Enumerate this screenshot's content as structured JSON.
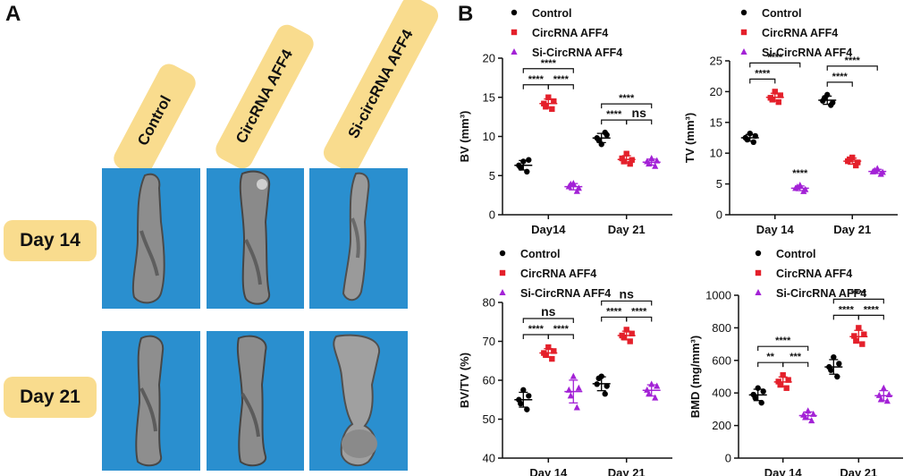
{
  "panel_a": {
    "letter": "A",
    "columns": [
      "Control",
      "CircRNA AFF4",
      "Si-circRNA AFF4"
    ],
    "rows": [
      "Day 14",
      "Day 21"
    ]
  },
  "panel_b": {
    "letter": "B"
  },
  "colors": {
    "control": "#000000",
    "circ": "#e4202b",
    "si": "#a322d6",
    "tile_bg": "#2a8fcf",
    "label_bg": "#f9dc8e"
  },
  "legend": [
    "Control",
    "CircRNA AFF4",
    "Si-CircRNA AFF4"
  ],
  "chart_data": [
    {
      "type": "scatter",
      "ylabel": "BV (mm³)",
      "ylim": [
        0,
        20
      ],
      "yticks": [
        0,
        5,
        10,
        15,
        20
      ],
      "categories": [
        "Day14",
        "Day 21"
      ],
      "series": [
        {
          "name": "Control",
          "points": [
            [
              6.3,
              5.5,
              6.8,
              7.0,
              6.0
            ],
            [
              9.8,
              10.5,
              9.0,
              10.2,
              9.5
            ]
          ]
        },
        {
          "name": "CircRNA AFF4",
          "points": [
            [
              14.2,
              13.5,
              15.0,
              14.5,
              13.8
            ],
            [
              7.2,
              6.5,
              7.8,
              7.0,
              6.8
            ]
          ]
        },
        {
          "name": "Si-CircRNA AFF4",
          "points": [
            [
              3.6,
              3.0,
              4.0,
              3.4,
              3.9
            ],
            [
              6.8,
              6.2,
              7.2,
              6.9,
              6.5
            ]
          ]
        }
      ],
      "brackets": [
        {
          "group": 0,
          "from": 0,
          "to": 1,
          "label": "****",
          "level": 0
        },
        {
          "group": 0,
          "from": 1,
          "to": 2,
          "label": "****",
          "level": 0
        },
        {
          "group": 0,
          "from": 0,
          "to": 2,
          "label": "****",
          "level": 1
        },
        {
          "group": 1,
          "from": 0,
          "to": 1,
          "label": "****",
          "level": 0
        },
        {
          "group": 1,
          "from": 1,
          "to": 2,
          "label": "ns",
          "level": 0
        },
        {
          "group": 1,
          "from": 0,
          "to": 2,
          "label": "****",
          "level": 1
        }
      ],
      "single_marks": []
    },
    {
      "type": "scatter",
      "ylabel": "TV (mm³)",
      "ylim": [
        0,
        25
      ],
      "yticks": [
        0,
        5,
        10,
        15,
        20,
        25
      ],
      "categories": [
        "Day 14",
        "Day 21"
      ],
      "series": [
        {
          "name": "Control",
          "points": [
            [
              12.5,
              11.8,
              13.2,
              12.8,
              12.2
            ],
            [
              18.5,
              17.8,
              19.5,
              18.2,
              19.0
            ]
          ]
        },
        {
          "name": "CircRNA AFF4",
          "points": [
            [
              19.0,
              18.3,
              20.0,
              19.4,
              18.7
            ],
            [
              8.7,
              8.0,
              9.3,
              8.5,
              9.0
            ]
          ]
        },
        {
          "name": "Si-CircRNA AFF4",
          "points": [
            [
              4.3,
              3.8,
              4.8,
              4.1,
              4.5
            ],
            [
              7.0,
              6.6,
              7.5,
              6.9,
              7.2
            ]
          ]
        }
      ],
      "brackets": [
        {
          "group": 0,
          "from": 0,
          "to": 1,
          "label": "****",
          "level": 0
        },
        {
          "group": 0,
          "from": 0,
          "to": 2,
          "label": "****",
          "level": 1
        },
        {
          "group": 1,
          "from": 0,
          "to": 1,
          "label": "****",
          "level": 0
        },
        {
          "group": 1,
          "from": 0,
          "to": 2,
          "label": "****",
          "level": 1
        }
      ],
      "single_marks": [
        {
          "group": 0,
          "series": 2,
          "label": "****"
        }
      ]
    },
    {
      "type": "scatter",
      "ylabel": "BV/TV (%)",
      "ylim": [
        40,
        80
      ],
      "yticks": [
        40,
        50,
        60,
        70,
        80
      ],
      "categories": [
        "Day 14",
        "Day 21"
      ],
      "series": [
        {
          "name": "Control",
          "points": [
            [
              55.0,
              52.5,
              57.5,
              56.0,
              54.0
            ],
            [
              59.0,
              56.5,
              61.0,
              58.5,
              60.5
            ]
          ]
        },
        {
          "name": "CircRNA AFF4",
          "points": [
            [
              67.0,
              65.5,
              68.5,
              67.5,
              66.5
            ],
            [
              71.5,
              70.0,
              73.0,
              72.0,
              71.0
            ]
          ]
        },
        {
          "name": "Si-CircRNA AFF4",
          "points": [
            [
              57.5,
              53.0,
              61.0,
              58.0,
              56.0
            ],
            [
              57.5,
              55.5,
              59.0,
              58.5,
              56.5
            ]
          ]
        }
      ],
      "brackets": [
        {
          "group": 0,
          "from": 0,
          "to": 1,
          "label": "****",
          "level": 0
        },
        {
          "group": 0,
          "from": 1,
          "to": 2,
          "label": "****",
          "level": 0
        },
        {
          "group": 0,
          "from": 0,
          "to": 2,
          "label": "ns",
          "level": 1
        },
        {
          "group": 1,
          "from": 0,
          "to": 1,
          "label": "****",
          "level": 0
        },
        {
          "group": 1,
          "from": 1,
          "to": 2,
          "label": "****",
          "level": 0
        },
        {
          "group": 1,
          "from": 0,
          "to": 2,
          "label": "ns",
          "level": 1
        }
      ],
      "single_marks": []
    },
    {
      "type": "scatter",
      "ylabel": "BMD (mg/mm³)",
      "ylim": [
        0,
        1000
      ],
      "yticks": [
        0,
        200,
        400,
        600,
        800,
        1000
      ],
      "categories": [
        "Day 14",
        "Day 21"
      ],
      "series": [
        {
          "name": "Control",
          "points": [
            [
              390,
              340,
              430,
              410,
              370
            ],
            [
              560,
              500,
              620,
              580,
              540
            ]
          ]
        },
        {
          "name": "CircRNA AFF4",
          "points": [
            [
              470,
              430,
              510,
              480,
              450
            ],
            [
              750,
              700,
              800,
              760,
              720
            ]
          ]
        },
        {
          "name": "Si-CircRNA AFF4",
          "points": [
            [
              265,
              230,
              290,
              270,
              250
            ],
            [
              385,
              350,
              430,
              390,
              360
            ]
          ]
        }
      ],
      "brackets": [
        {
          "group": 0,
          "from": 0,
          "to": 1,
          "label": "**",
          "level": 0
        },
        {
          "group": 0,
          "from": 1,
          "to": 2,
          "label": "***",
          "level": 0
        },
        {
          "group": 0,
          "from": 0,
          "to": 2,
          "label": "****",
          "level": 1
        },
        {
          "group": 1,
          "from": 0,
          "to": 1,
          "label": "****",
          "level": 0
        },
        {
          "group": 1,
          "from": 1,
          "to": 2,
          "label": "****",
          "level": 0
        },
        {
          "group": 1,
          "from": 0,
          "to": 2,
          "label": "****",
          "level": 1
        }
      ],
      "single_marks": []
    }
  ]
}
